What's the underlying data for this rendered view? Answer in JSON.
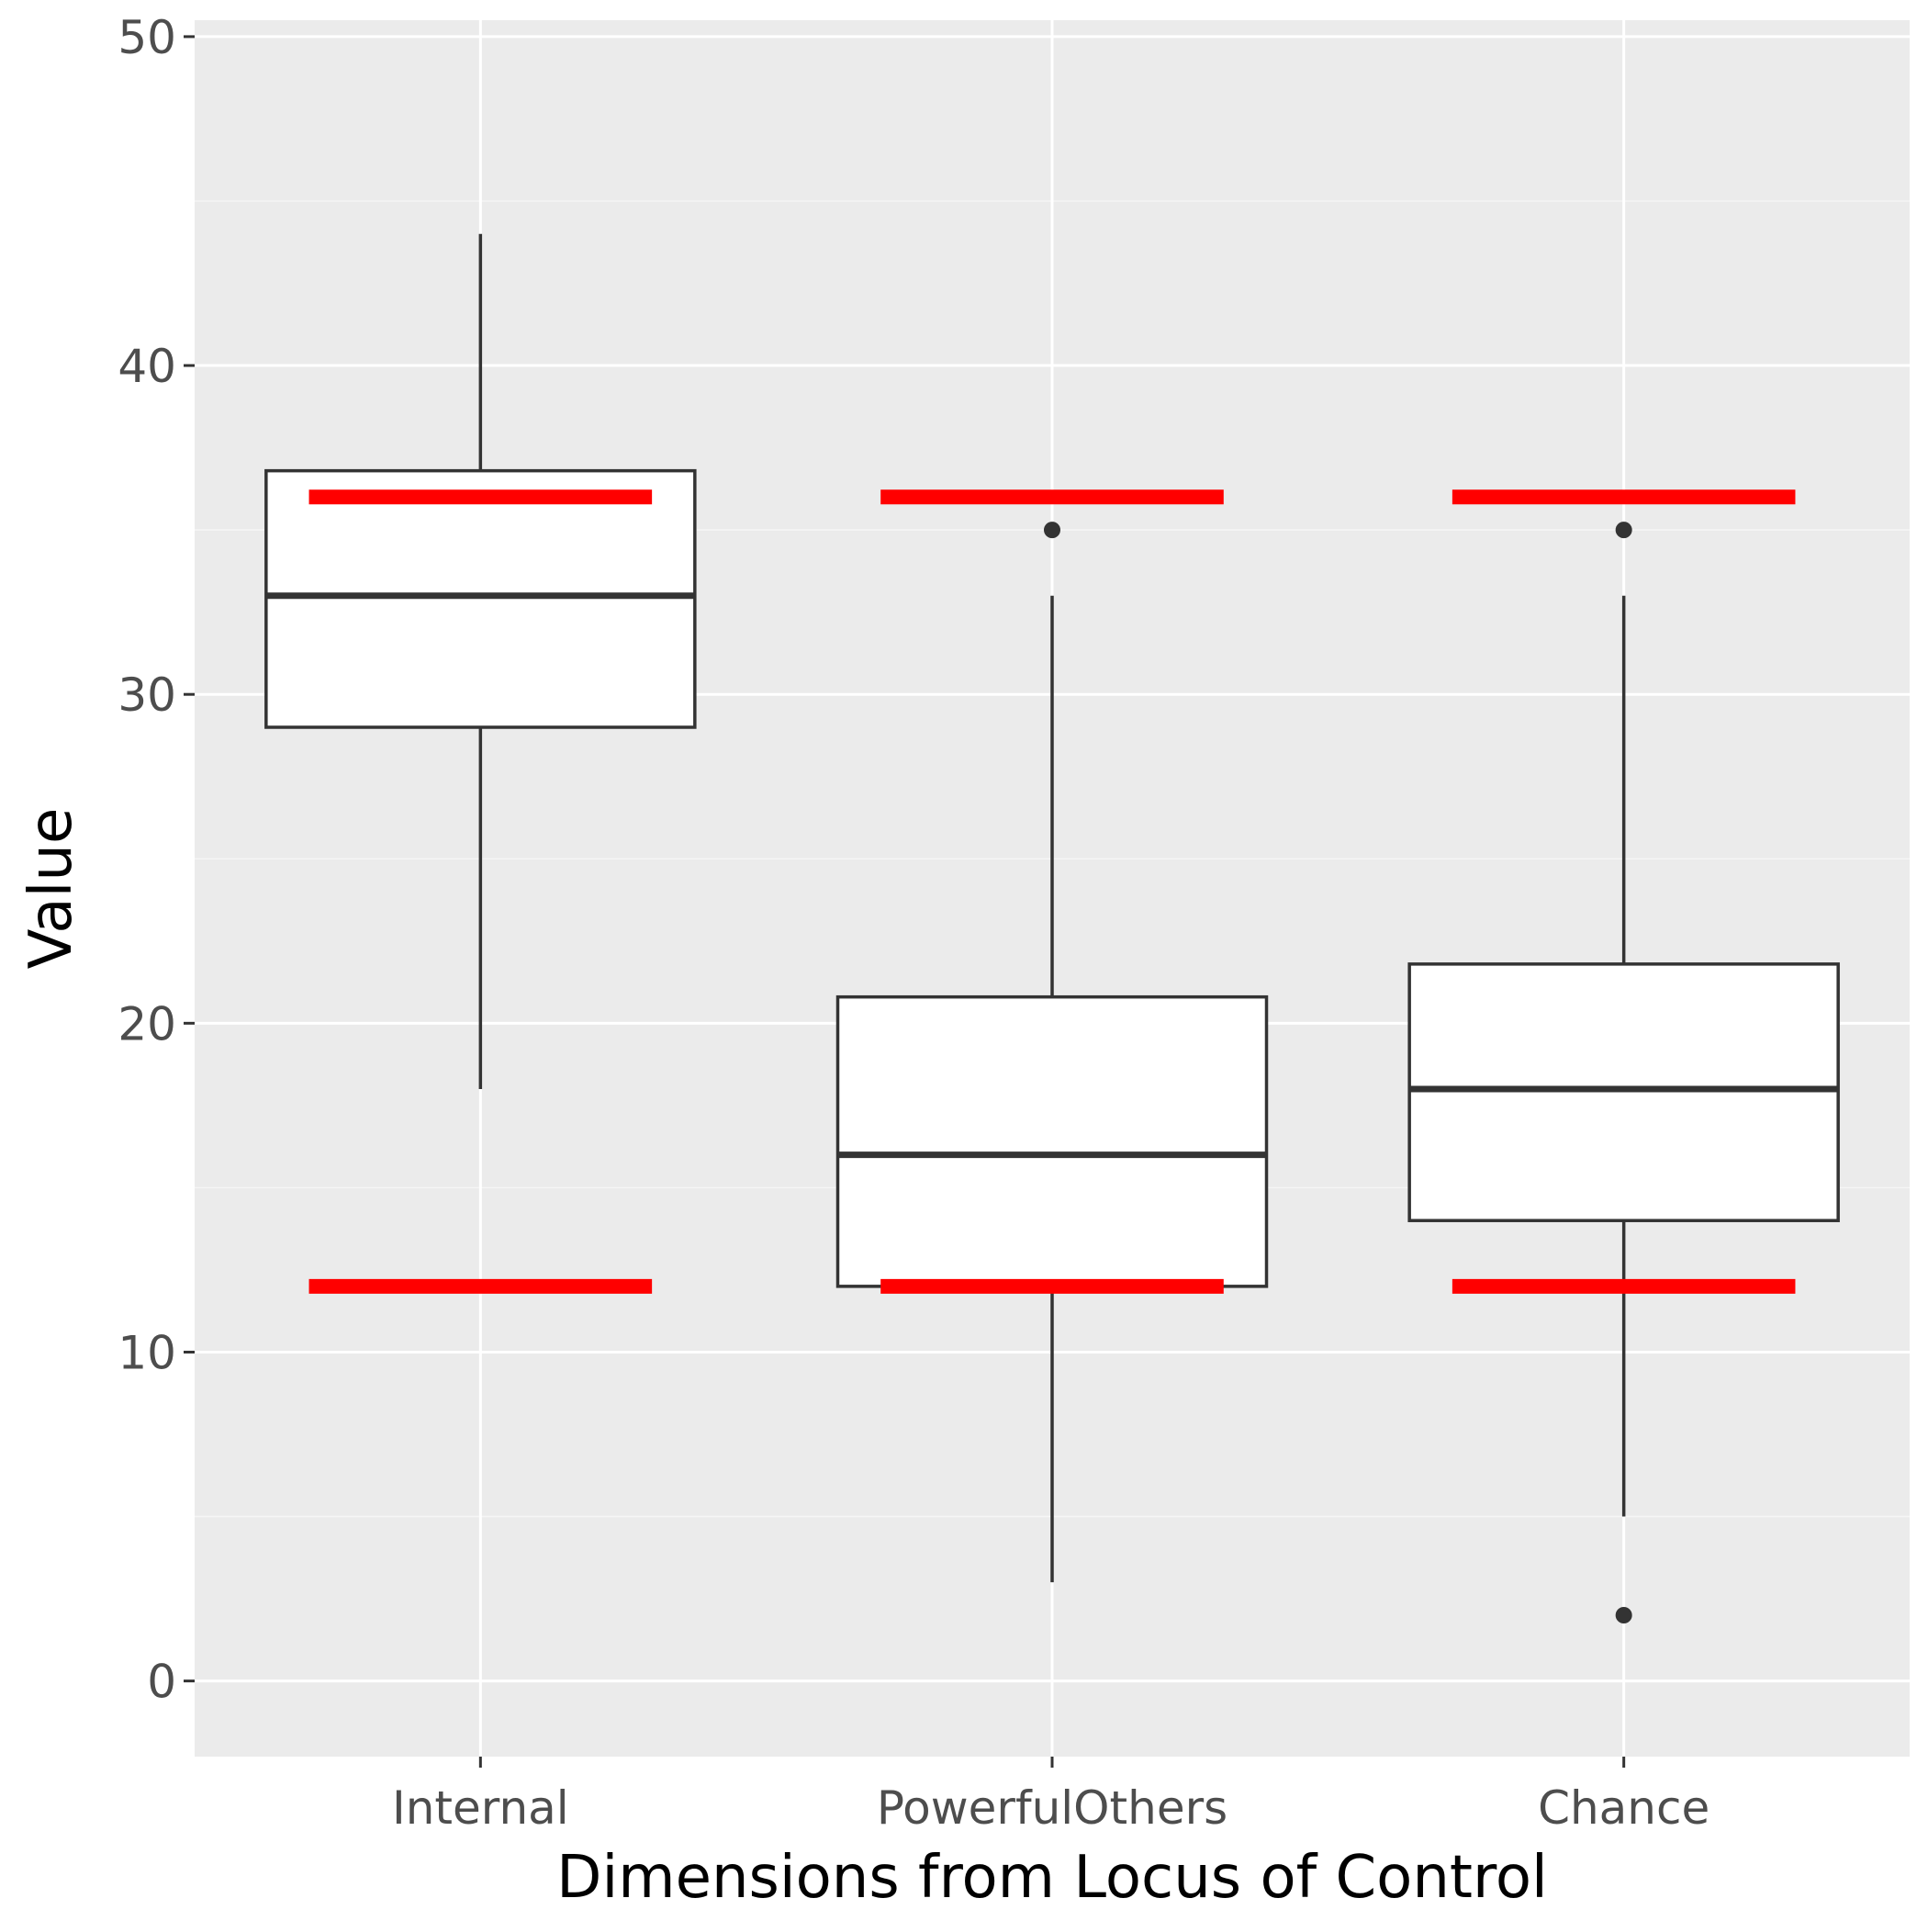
{
  "chart_data": {
    "type": "boxplot",
    "xlabel": "Dimensions from Locus of Control",
    "ylabel": "Value",
    "ylim": [
      -2.3,
      50.5
    ],
    "yticks": [
      0,
      10,
      20,
      30,
      40,
      50
    ],
    "ytick_labels": [
      "0",
      "10",
      "20",
      "30",
      "40",
      "50"
    ],
    "categories": [
      "Internal",
      "PowerfulOthers",
      "Chance"
    ],
    "boxes": [
      {
        "category": "Internal",
        "whisker_low": 18,
        "q1": 29,
        "median": 33,
        "q3": 36.8,
        "whisker_high": 44,
        "outliers": []
      },
      {
        "category": "PowerfulOthers",
        "whisker_low": 3,
        "q1": 12,
        "median": 16,
        "q3": 20.8,
        "whisker_high": 33,
        "outliers": [
          35
        ]
      },
      {
        "category": "Chance",
        "whisker_low": 5,
        "q1": 14,
        "median": 18,
        "q3": 21.8,
        "whisker_high": 33,
        "outliers": [
          35,
          2
        ]
      }
    ],
    "reference_lines": [
      {
        "category": "Internal",
        "values": [
          12,
          36
        ]
      },
      {
        "category": "PowerfulOthers",
        "values": [
          12,
          36
        ]
      },
      {
        "category": "Chance",
        "values": [
          12,
          36
        ]
      }
    ],
    "grid": true,
    "legend": "none",
    "colors": {
      "panel_background": "#ebebeb",
      "grid_major": "#ffffff",
      "grid_minor": "#f5f5f5",
      "box_fill": "#ffffff",
      "box_outline": "#333333",
      "reference_line": "#ff0000",
      "tick_label": "#4d4d4d",
      "axis_title": "#000000"
    }
  }
}
